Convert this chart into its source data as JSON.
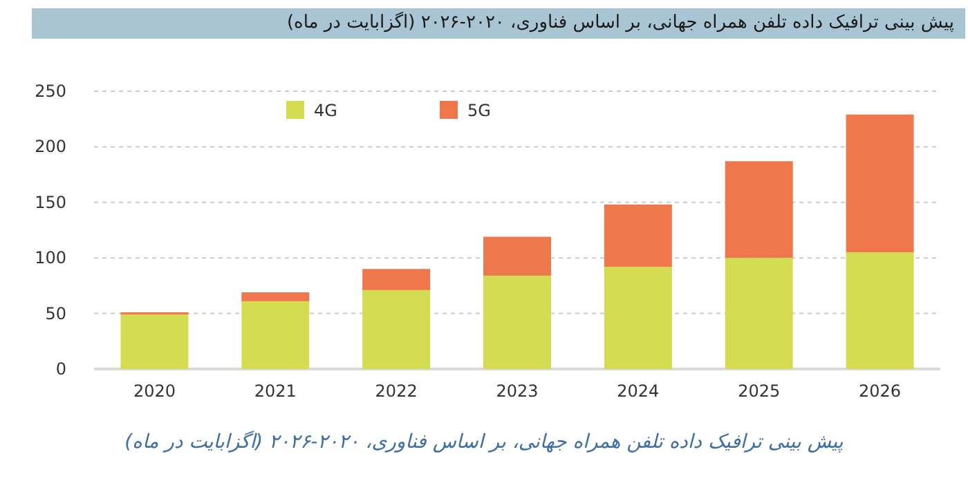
{
  "chart_data": {
    "type": "bar",
    "stacked": true,
    "title": "پیش بینی ترافیک داده تلفن همراه جهانی، بر اساس فناوری، ۲۰۲۰-۲۰۲۶ (اگزابایت در ماه)",
    "annotations": [
      "پیش بینی ترافیک داده تلفن همراه جهانی، بر اساس فناوری، ۲۰۲۰-۲۰۲۶ (اگزابایت در ماه)"
    ],
    "categories": [
      "2020",
      "2021",
      "2022",
      "2023",
      "2024",
      "2025",
      "2026"
    ],
    "series": [
      {
        "name": "4G",
        "color": "#d4dc52",
        "values": [
          49,
          61,
          71,
          84,
          92,
          100,
          105
        ]
      },
      {
        "name": "5G",
        "color": "#ee774c",
        "values": [
          2,
          8,
          19,
          35,
          56,
          87,
          124
        ]
      }
    ],
    "ylim": [
      0,
      250
    ],
    "yticks": [
      0,
      50,
      100,
      150,
      200,
      250
    ],
    "grid": "y",
    "legend": "top"
  }
}
